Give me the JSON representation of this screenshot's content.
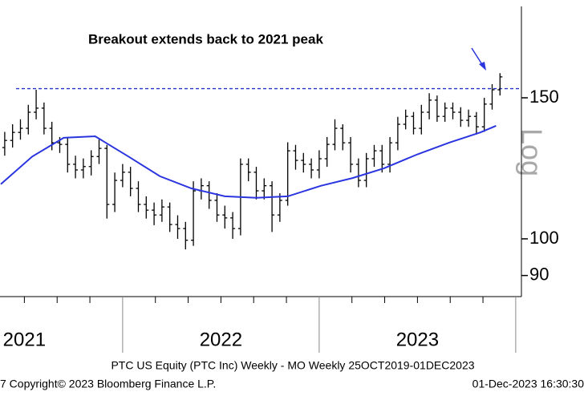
{
  "chart_data": {
    "type": "ohlc",
    "annotation": "Breakout extends back to 2021 peak",
    "y_label": "Log",
    "log_scale": true,
    "ylim": [
      84.7,
      198.7
    ],
    "yticks": [
      150,
      100,
      90
    ],
    "xlim": [
      2021.376,
      2024.029
    ],
    "xticks": [
      {
        "value": 2021.5,
        "label": "2021"
      },
      {
        "value": 2022.5,
        "label": "2022"
      },
      {
        "value": 2023.5,
        "label": "2023"
      }
    ],
    "xdividers": [
      2022,
      2023,
      2024
    ],
    "reference_line": {
      "value": 154,
      "color": "#2233cc"
    },
    "footer_title": "PTC US Equity (PTC Inc) Weekly - MO  Weekly 25OCT2019-01DEC2023",
    "copyright": "7 Copyright© 2023 Bloomberg Finance L.P.",
    "timestamp": "01-Dec-2023 16:30:30",
    "ohlc": {
      "color": "#000000",
      "x": [
        2021.4,
        2021.44,
        2021.48,
        2021.52,
        2021.56,
        2021.6,
        2021.64,
        2021.68,
        2021.72,
        2021.76,
        2021.8,
        2021.84,
        2021.88,
        2021.92,
        2021.96,
        2022.0,
        2022.04,
        2022.08,
        2022.12,
        2022.16,
        2022.2,
        2022.24,
        2022.28,
        2022.32,
        2022.36,
        2022.4,
        2022.44,
        2022.48,
        2022.52,
        2022.56,
        2022.6,
        2022.64,
        2022.68,
        2022.72,
        2022.76,
        2022.8,
        2022.84,
        2022.88,
        2022.92,
        2022.96,
        2023.0,
        2023.04,
        2023.08,
        2023.12,
        2023.16,
        2023.2,
        2023.24,
        2023.28,
        2023.32,
        2023.36,
        2023.4,
        2023.44,
        2023.48,
        2023.52,
        2023.56,
        2023.6,
        2023.64,
        2023.68,
        2023.72,
        2023.76,
        2023.8,
        2023.84,
        2023.88,
        2023.92
      ],
      "open": [
        130,
        132.7,
        135.8,
        137.4,
        143.9,
        145.6,
        137.4,
        131.8,
        131.2,
        123.9,
        121.9,
        123.1,
        126.7,
        129.7,
        110.4,
        118.3,
        121.1,
        115.6,
        110.4,
        108.6,
        107.1,
        109.6,
        104.2,
        103.0,
        99.6,
        114.8,
        116.5,
        111.7,
        107.1,
        106.2,
        103.0,
        123.9,
        121.1,
        114.8,
        116.5,
        107.1,
        111.7,
        128.8,
        125.3,
        123.9,
        121.9,
        125.9,
        131.2,
        137.4,
        131.8,
        123.9,
        118.3,
        125.9,
        128.8,
        123.9,
        131.8,
        139.0,
        142.2,
        137.4,
        143.9,
        149.0,
        142.2,
        145.6,
        143.9,
        140.6,
        142.2,
        138.0,
        147.3,
        153.5
      ],
      "high": [
        136,
        139,
        141,
        147,
        153.5,
        148,
        140,
        134,
        134,
        127,
        126,
        129,
        133,
        131,
        121,
        124,
        123,
        118,
        113,
        111,
        112,
        111,
        107,
        105,
        118,
        119,
        118,
        114,
        110,
        108,
        126,
        126,
        123,
        119,
        118,
        114,
        132,
        131,
        128,
        126,
        129,
        134,
        141,
        139,
        134,
        126,
        128,
        131,
        131,
        134,
        142,
        145,
        144,
        147,
        152,
        151,
        148,
        148,
        146,
        145,
        144,
        150,
        156,
        161
      ],
      "low": [
        127,
        130,
        133,
        135,
        141,
        135,
        129,
        128,
        121,
        119,
        119,
        120,
        124,
        106,
        108,
        116,
        113,
        108,
        106,
        104,
        105,
        102,
        100,
        97,
        98,
        112,
        109,
        105,
        103,
        100,
        101,
        118,
        112,
        112,
        102,
        105,
        110,
        122,
        121,
        119,
        119,
        123,
        129,
        129,
        121,
        116,
        116,
        123,
        121,
        121,
        129,
        137,
        135,
        135,
        141,
        140,
        140,
        141,
        138,
        138,
        135,
        136,
        145,
        151
      ],
      "close": [
        132.7,
        135.8,
        137.4,
        143.9,
        145.6,
        137.4,
        131.8,
        131.2,
        123.9,
        121.9,
        123.1,
        126.7,
        129.7,
        110.4,
        118.3,
        121.1,
        115.6,
        110.4,
        108.6,
        107.1,
        109.6,
        104.2,
        103.0,
        99.6,
        114.8,
        116.5,
        111.7,
        107.1,
        106.2,
        103.0,
        123.9,
        121.1,
        114.8,
        116.5,
        107.1,
        111.7,
        128.8,
        125.3,
        123.9,
        121.9,
        125.9,
        131.2,
        137.4,
        131.8,
        123.9,
        118.3,
        125.9,
        128.8,
        123.9,
        131.8,
        139.0,
        142.2,
        137.4,
        143.9,
        149.0,
        142.2,
        145.6,
        143.9,
        140.6,
        142.2,
        138.0,
        147.3,
        153.5,
        159.3
      ]
    },
    "moving_average": {
      "color": "#2a35e0",
      "x": [
        2021.38,
        2021.54,
        2021.7,
        2021.86,
        2022.03,
        2022.19,
        2022.35,
        2022.52,
        2022.68,
        2022.84,
        2023.01,
        2023.17,
        2023.33,
        2023.5,
        2023.66,
        2023.82,
        2023.9
      ],
      "values": [
        117.0,
        126.7,
        133.7,
        134.3,
        126.7,
        119.7,
        115.6,
        113.0,
        112.5,
        113.0,
        116.5,
        119.1,
        122.5,
        127.5,
        131.8,
        135.8,
        138.4
      ]
    }
  }
}
